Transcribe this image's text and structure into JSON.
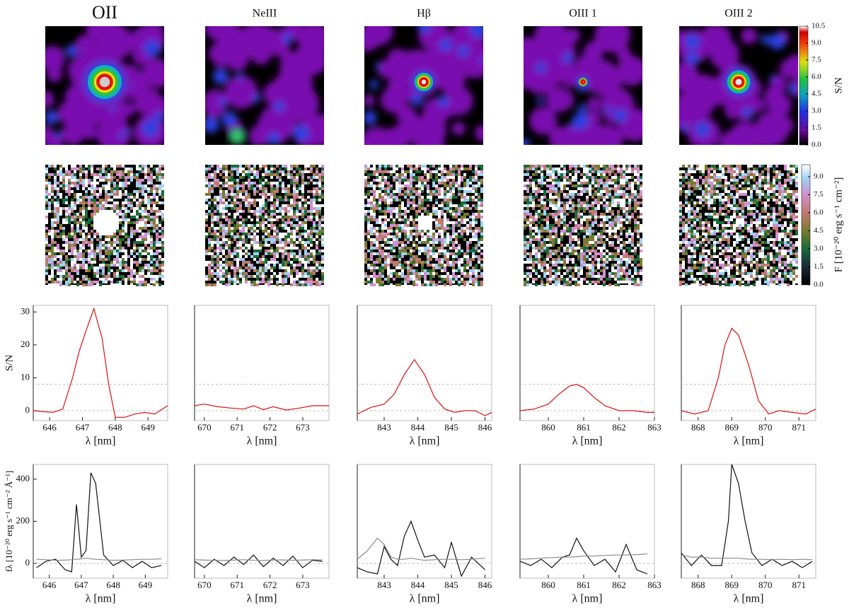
{
  "columns": [
    {
      "title": "OII"
    },
    {
      "title": "NeIII"
    },
    {
      "title": "Hβ"
    },
    {
      "title": "OIII 1"
    },
    {
      "title": "OIII 2"
    }
  ],
  "chart_data": [
    {
      "type": "colorbar",
      "ylabel": "S/N",
      "ylim": [
        0,
        10.5
      ],
      "yticks": [
        {
          "value": 0,
          "label": "0.0"
        },
        {
          "value": 1.5,
          "label": "1.5"
        },
        {
          "value": 3,
          "label": "3.0"
        },
        {
          "value": 4.5,
          "label": "4.5"
        },
        {
          "value": 6,
          "label": "6.0"
        },
        {
          "value": 7.5,
          "label": "7.5"
        },
        {
          "value": 9,
          "label": "9.0"
        },
        {
          "value": 10.5,
          "label": "10.5"
        }
      ]
    },
    {
      "type": "colorbar",
      "ylabel": "F [10⁻²⁰ erg s⁻¹ cm⁻²]",
      "ylim": [
        0,
        10
      ],
      "yticks": [
        {
          "value": 0,
          "label": "0.0"
        },
        {
          "value": 1.5,
          "label": "1.5"
        },
        {
          "value": 3,
          "label": "3.0"
        },
        {
          "value": 4.5,
          "label": "4.5"
        },
        {
          "value": 6,
          "label": "6.0"
        },
        {
          "value": 7.5,
          "label": "7.5"
        },
        {
          "value": 9,
          "label": "9.0"
        }
      ]
    },
    {
      "type": "line",
      "ylabel": "S/N",
      "xlabel": "λ [nm]",
      "xlim": [
        645.5,
        649.6
      ],
      "xticks": [
        646,
        647,
        648,
        649
      ],
      "ylim": [
        -3,
        32
      ],
      "yticks": [
        0,
        10,
        20,
        30
      ],
      "hlines": [
        0,
        8
      ],
      "x": [
        645.5,
        645.8,
        646.1,
        646.4,
        646.7,
        646.9,
        647.1,
        647.35,
        647.6,
        647.8,
        648.0,
        648.3,
        648.6,
        648.9,
        649.2,
        649.6
      ],
      "series": [
        {
          "color": "#e01010",
          "values": [
            0,
            -0.3,
            -0.5,
            0.5,
            10,
            18,
            24,
            31,
            22,
            8,
            -2,
            -2,
            -1,
            -0.5,
            -1,
            1.5
          ]
        }
      ]
    },
    {
      "type": "line",
      "xlabel": "λ [nm]",
      "xlim": [
        669.7,
        673.8
      ],
      "xticks": [
        670,
        671,
        672,
        673
      ],
      "ylim": [
        -3,
        32
      ],
      "hlines": [
        0,
        8
      ],
      "x": [
        669.7,
        670.0,
        670.4,
        670.8,
        671.2,
        671.5,
        671.8,
        672.1,
        672.5,
        672.9,
        673.3,
        673.8
      ],
      "series": [
        {
          "color": "#e01010",
          "values": [
            1.5,
            2,
            1.2,
            0.8,
            0.5,
            1.5,
            0.3,
            1.2,
            0.2,
            0.8,
            1.5,
            1.5
          ]
        }
      ]
    },
    {
      "type": "line",
      "xlabel": "λ [nm]",
      "xlim": [
        842.2,
        846.2
      ],
      "xticks": [
        843,
        844,
        845,
        846
      ],
      "ylim": [
        -3,
        32
      ],
      "hlines": [
        0,
        8
      ],
      "x": [
        842.2,
        842.6,
        843.0,
        843.3,
        843.6,
        843.9,
        844.2,
        844.5,
        844.8,
        845.1,
        845.4,
        845.7,
        846.0,
        846.2
      ],
      "series": [
        {
          "color": "#e01010",
          "values": [
            -1,
            1,
            2,
            5,
            11,
            15.5,
            11,
            4,
            0.5,
            -0.5,
            0,
            0,
            -1.5,
            -0.5
          ]
        }
      ]
    },
    {
      "type": "line",
      "xlabel": "λ [nm]",
      "xlim": [
        859.2,
        863
      ],
      "xticks": [
        860,
        861,
        862,
        863
      ],
      "ylim": [
        -3,
        32
      ],
      "hlines": [
        0,
        8
      ],
      "x": [
        859.2,
        859.6,
        860.0,
        860.3,
        860.6,
        860.8,
        861.0,
        861.3,
        861.6,
        862.0,
        862.4,
        862.8,
        863.0
      ],
      "series": [
        {
          "color": "#e01010",
          "values": [
            0,
            0.5,
            2,
            5,
            7.5,
            8,
            7,
            4,
            1.5,
            0,
            0,
            -0.5,
            -0.5
          ]
        }
      ]
    },
    {
      "type": "line",
      "xlabel": "λ [nm]",
      "xlim": [
        867.5,
        871.5
      ],
      "xticks": [
        868,
        869,
        870,
        871
      ],
      "ylim": [
        -3,
        32
      ],
      "hlines": [
        0,
        8
      ],
      "x": [
        867.5,
        867.9,
        868.3,
        868.6,
        868.8,
        869.0,
        869.2,
        869.5,
        869.8,
        870.1,
        870.4,
        870.8,
        871.2,
        871.5
      ],
      "series": [
        {
          "color": "#e01010",
          "values": [
            0,
            -1,
            0,
            10,
            20,
            25,
            23,
            14,
            3,
            -1,
            0,
            -0.5,
            -1,
            0.5
          ]
        }
      ]
    },
    {
      "type": "line",
      "ylabel": "fλ [10⁻²⁰ erg s⁻¹ cm⁻² Å⁻¹]",
      "xlabel": "λ [nm]",
      "xlim": [
        645.5,
        649.7
      ],
      "xticks": [
        646,
        647,
        648,
        649
      ],
      "ylim": [
        -70,
        470
      ],
      "yticks": [
        0,
        200,
        400
      ],
      "hlines": [
        0
      ],
      "x": [
        645.6,
        645.9,
        646.2,
        646.5,
        646.7,
        646.85,
        647.0,
        647.15,
        647.3,
        647.45,
        647.7,
        648.0,
        648.3,
        648.6,
        648.9,
        649.2,
        649.5
      ],
      "series": [
        {
          "color": "#111111",
          "values": [
            -20,
            10,
            20,
            -30,
            -40,
            280,
            30,
            60,
            430,
            380,
            40,
            -10,
            15,
            -20,
            10,
            -20,
            -10
          ]
        },
        {
          "color": "#8a8a8a",
          "values": [
            20,
            18,
            15,
            16,
            18,
            20,
            22,
            25,
            22,
            20,
            18,
            15,
            16,
            18,
            20,
            20,
            22
          ]
        }
      ]
    },
    {
      "type": "line",
      "xlabel": "λ [nm]",
      "xlim": [
        669.7,
        673.8
      ],
      "xticks": [
        670,
        671,
        672,
        673
      ],
      "ylim": [
        -70,
        470
      ],
      "hlines": [
        0
      ],
      "x": [
        669.7,
        670.0,
        670.3,
        670.6,
        670.9,
        671.2,
        671.5,
        671.8,
        672.1,
        672.4,
        672.7,
        673.0,
        673.3,
        673.6
      ],
      "series": [
        {
          "color": "#111111",
          "values": [
            10,
            -20,
            20,
            -10,
            30,
            -5,
            40,
            -15,
            25,
            -10,
            35,
            -20,
            15,
            10
          ]
        },
        {
          "color": "#8a8a8a",
          "values": [
            18,
            16,
            15,
            14,
            16,
            18,
            15,
            14,
            16,
            17,
            15,
            16,
            18,
            17
          ]
        }
      ]
    },
    {
      "type": "line",
      "xlabel": "λ [nm]",
      "xlim": [
        842.2,
        846.2
      ],
      "xticks": [
        843,
        844,
        845,
        846
      ],
      "ylim": [
        -70,
        470
      ],
      "hlines": [
        0
      ],
      "x": [
        842.2,
        842.5,
        842.8,
        843.0,
        843.2,
        843.4,
        843.6,
        843.8,
        844.0,
        844.2,
        844.5,
        844.8,
        845.0,
        845.3,
        845.6,
        846.0
      ],
      "series": [
        {
          "color": "#111111",
          "values": [
            -20,
            -40,
            -50,
            80,
            20,
            -10,
            130,
            200,
            110,
            30,
            40,
            -20,
            100,
            -60,
            30,
            -30
          ]
        },
        {
          "color": "#8a8a8a",
          "values": [
            20,
            60,
            120,
            90,
            30,
            20,
            20,
            25,
            20,
            15,
            18,
            20,
            20,
            18,
            20,
            25
          ]
        }
      ]
    },
    {
      "type": "line",
      "xlabel": "λ [nm]",
      "xlim": [
        859.2,
        863
      ],
      "xticks": [
        860,
        861,
        862,
        863
      ],
      "ylim": [
        -70,
        470
      ],
      "hlines": [
        0
      ],
      "x": [
        859.2,
        859.5,
        859.8,
        860.1,
        860.4,
        860.6,
        860.8,
        861.0,
        861.3,
        861.6,
        861.9,
        862.2,
        862.5,
        862.8
      ],
      "series": [
        {
          "color": "#111111",
          "values": [
            10,
            -10,
            20,
            -20,
            30,
            40,
            120,
            60,
            -10,
            20,
            -40,
            90,
            -30,
            -50
          ]
        },
        {
          "color": "#8a8a8a",
          "values": [
            20,
            22,
            25,
            28,
            30,
            30,
            32,
            35,
            35,
            38,
            40,
            40,
            42,
            45
          ]
        }
      ]
    },
    {
      "type": "line",
      "xlabel": "λ [nm]",
      "xlim": [
        867.5,
        871.5
      ],
      "xticks": [
        868,
        869,
        870,
        871
      ],
      "ylim": [
        -70,
        470
      ],
      "hlines": [
        0
      ],
      "x": [
        867.5,
        867.8,
        868.1,
        868.4,
        868.7,
        868.9,
        869.0,
        869.2,
        869.4,
        869.6,
        869.9,
        870.2,
        870.5,
        870.8,
        871.1,
        871.4
      ],
      "series": [
        {
          "color": "#111111",
          "values": [
            50,
            -10,
            40,
            -10,
            -10,
            200,
            470,
            380,
            200,
            50,
            -10,
            20,
            -10,
            10,
            -20,
            10
          ]
        },
        {
          "color": "#8a8a8a",
          "values": [
            40,
            30,
            30,
            25,
            25,
            25,
            25,
            25,
            22,
            20,
            20,
            18,
            20,
            18,
            20,
            18
          ]
        }
      ]
    }
  ]
}
